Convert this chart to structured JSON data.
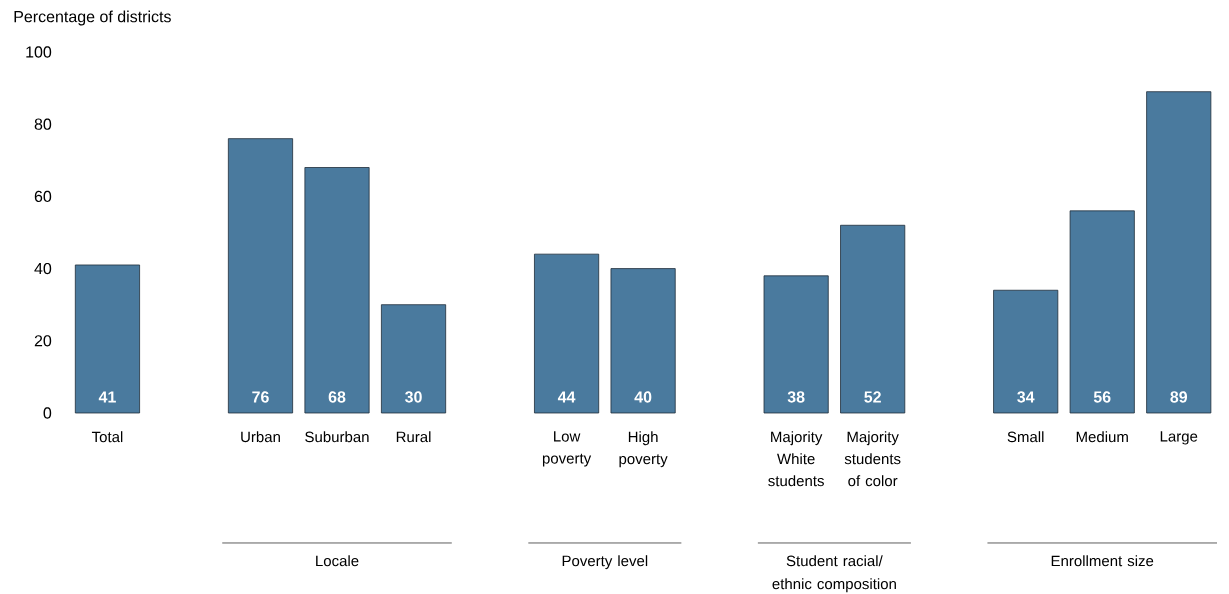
{
  "chart_data": {
    "type": "bar",
    "ylabel": "Percentage of districts",
    "categories": [
      "Total",
      null,
      "Urban",
      "Suburban",
      "Rural",
      null,
      "Low poverty",
      "High poverty",
      null,
      "Majority White students",
      "Majority students of color",
      null,
      "Small",
      "Medium",
      "Large"
    ],
    "values": [
      41,
      null,
      76,
      68,
      30,
      null,
      44,
      40,
      null,
      38,
      52,
      null,
      34,
      56,
      89
    ],
    "color": "#4a7a9e",
    "ylim": [
      0,
      100
    ],
    "yticks": [
      0,
      20,
      40,
      60,
      80,
      100
    ],
    "data_labels": true,
    "annotations": [
      "Locale",
      "Poverty level",
      "Student racial/ ethnic composition",
      "Enrollment size"
    ]
  }
}
